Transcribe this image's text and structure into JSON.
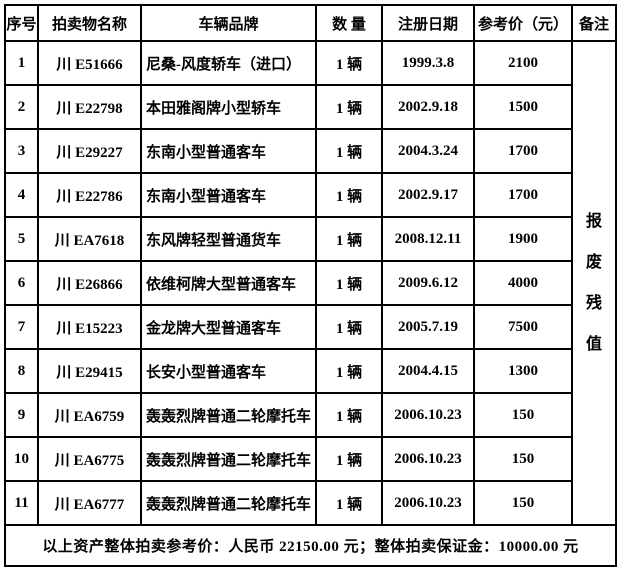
{
  "colors": {
    "border": "#000000",
    "background": "#ffffff",
    "text": "#000000"
  },
  "table": {
    "headers": [
      "序号",
      "拍卖物名称",
      "车辆品牌",
      "数 量",
      "注册日期",
      "参考价（元）",
      "备注"
    ],
    "rows": [
      {
        "no": "1",
        "name": "川 E51666",
        "brand": "尼桑-风度轿车（进口）",
        "qty": "1 辆",
        "date": "1999.3.8",
        "price": "2100"
      },
      {
        "no": "2",
        "name": "川 E22798",
        "brand": "本田雅阁牌小型轿车",
        "qty": "1 辆",
        "date": "2002.9.18",
        "price": "1500"
      },
      {
        "no": "3",
        "name": "川 E29227",
        "brand": "东南小型普通客车",
        "qty": "1 辆",
        "date": "2004.3.24",
        "price": "1700"
      },
      {
        "no": "4",
        "name": "川 E22786",
        "brand": "东南小型普通客车",
        "qty": "1 辆",
        "date": "2002.9.17",
        "price": "1700"
      },
      {
        "no": "5",
        "name": "川 EA7618",
        "brand": "东风牌轻型普通货车",
        "qty": "1 辆",
        "date": "2008.12.11",
        "price": "1900"
      },
      {
        "no": "6",
        "name": "川 E26866",
        "brand": "依维柯牌大型普通客车",
        "qty": "1 辆",
        "date": "2009.6.12",
        "price": "4000"
      },
      {
        "no": "7",
        "name": "川 E15223",
        "brand": "金龙牌大型普通客车",
        "qty": "1 辆",
        "date": "2005.7.19",
        "price": "7500"
      },
      {
        "no": "8",
        "name": "川 E29415",
        "brand": "长安小型普通客车",
        "qty": "1 辆",
        "date": "2004.4.15",
        "price": "1300"
      },
      {
        "no": "9",
        "name": "川 EA6759",
        "brand": "轰轰烈牌普通二轮摩托车",
        "qty": "1 辆",
        "date": "2006.10.23",
        "price": "150"
      },
      {
        "no": "10",
        "name": "川 EA6775",
        "brand": "轰轰烈牌普通二轮摩托车",
        "qty": "1 辆",
        "date": "2006.10.23",
        "price": "150"
      },
      {
        "no": "11",
        "name": "川 EA6777",
        "brand": "轰轰烈牌普通二轮摩托车",
        "qty": "1 辆",
        "date": "2006.10.23",
        "price": "150"
      }
    ],
    "remark_vertical": [
      "报",
      "废",
      "残",
      "值"
    ],
    "footer": "以上资产整体拍卖参考价：人民币 22150.00 元；整体拍卖保证金：10000.00 元"
  }
}
